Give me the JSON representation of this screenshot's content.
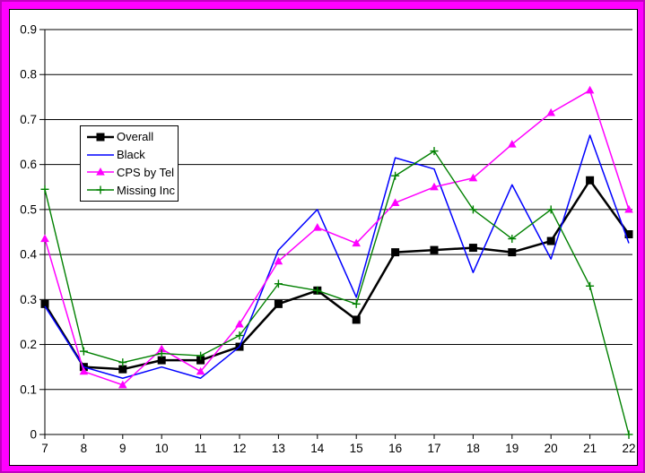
{
  "frame": {
    "outer_border_color": "#FF00FF",
    "outer_edge_color": "#C000C0",
    "panel_background": "#FFFFFF",
    "panel_border_color": "#000000",
    "gridline_color": "#000000"
  },
  "chart_data": {
    "type": "line",
    "title": "",
    "xlabel": "",
    "ylabel": "",
    "x": [
      7,
      8,
      9,
      10,
      11,
      12,
      13,
      14,
      15,
      16,
      17,
      18,
      19,
      20,
      21,
      22
    ],
    "xlim": [
      7,
      22
    ],
    "ylim": [
      0,
      0.9
    ],
    "ytick_step": 0.1,
    "ytick_labels": [
      "0",
      "0.1",
      "0.2",
      "0.3",
      "0.4",
      "0.5",
      "0.6",
      "0.7",
      "0.8",
      "0.9"
    ],
    "grid": "horizontal",
    "legend_position": "upper-left-inside",
    "series": [
      {
        "name": "Overall",
        "color": "#000000",
        "marker": "square",
        "line_width": 2.5,
        "values": [
          0.29,
          0.15,
          0.145,
          0.165,
          0.165,
          0.195,
          0.29,
          0.32,
          0.255,
          0.405,
          0.41,
          0.415,
          0.405,
          0.43,
          0.565,
          0.445
        ]
      },
      {
        "name": "Black",
        "color": "#0000FF",
        "marker": "none",
        "line_width": 1.5,
        "values": [
          0.285,
          0.15,
          0.125,
          0.15,
          0.125,
          0.195,
          0.41,
          0.5,
          0.305,
          0.615,
          0.59,
          0.36,
          0.555,
          0.39,
          0.665,
          0.425
        ]
      },
      {
        "name": "CPS by Tel",
        "color": "#FF00FF",
        "marker": "triangle",
        "line_width": 1.5,
        "values": [
          0.435,
          0.14,
          0.11,
          0.19,
          0.14,
          0.245,
          0.385,
          0.46,
          0.425,
          0.515,
          0.55,
          0.57,
          0.645,
          0.715,
          0.765,
          0.5
        ]
      },
      {
        "name": "Missing Inc",
        "color": "#008000",
        "marker": "plus",
        "line_width": 1.4,
        "values": [
          0.545,
          0.185,
          0.16,
          0.18,
          0.175,
          0.22,
          0.335,
          0.32,
          0.29,
          0.575,
          0.63,
          0.5,
          0.435,
          0.5,
          0.33,
          0.0
        ]
      }
    ]
  }
}
